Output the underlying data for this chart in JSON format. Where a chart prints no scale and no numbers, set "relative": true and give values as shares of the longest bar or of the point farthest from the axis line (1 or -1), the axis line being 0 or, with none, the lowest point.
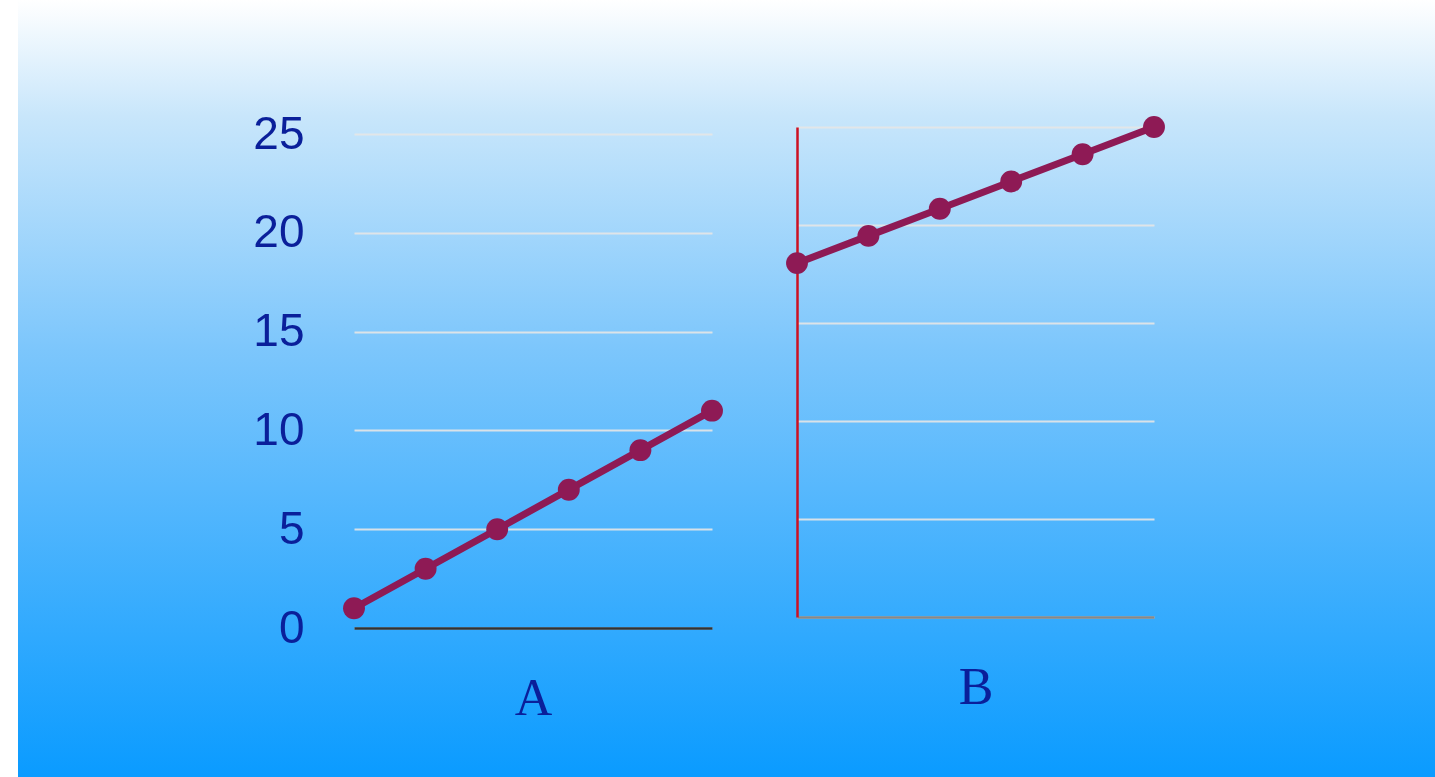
{
  "chart_data": [
    {
      "type": "line",
      "categories": [
        null,
        null,
        null,
        null,
        null,
        null
      ],
      "series": [
        {
          "color": "#8e1a55",
          "values": [
            1,
            3,
            5,
            7,
            9,
            11
          ]
        }
      ],
      "xlabel": "A",
      "ylim": [
        0,
        25
      ],
      "yticks": [
        0,
        5,
        10,
        15,
        20,
        25
      ],
      "grid": "y",
      "marker": "circle",
      "tick_labels": "y"
    },
    {
      "type": "line",
      "relative": true,
      "categories": [
        null,
        null,
        null,
        null,
        null,
        null
      ],
      "series": [
        {
          "color": "#8e1a55",
          "values": [
            0.7222,
            0.7778,
            0.8333,
            0.8889,
            0.9444,
            1
          ]
        }
      ],
      "xlabel": "B",
      "grid": "y",
      "marker": "circle",
      "tick_labels": false
    }
  ]
}
